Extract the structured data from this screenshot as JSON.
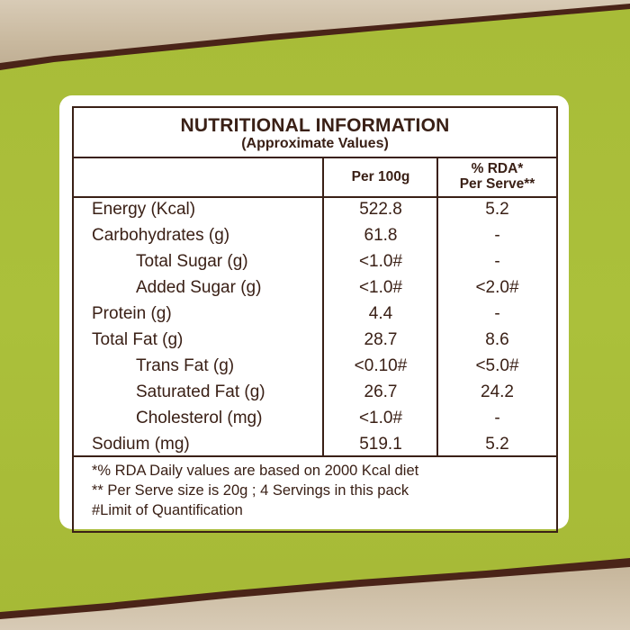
{
  "colors": {
    "background": "#a9bd3a",
    "text": "#3a2016",
    "panel": "#ffffff",
    "edge": "#4a2418"
  },
  "table": {
    "title": "NUTRITIONAL INFORMATION",
    "subtitle": "(Approximate Values)",
    "headers": {
      "per100": "Per 100g",
      "rda_line1": "% RDA*",
      "rda_line2": "Per Serve**"
    },
    "rows": [
      {
        "label": "Energy (Kcal)",
        "per100": "522.8",
        "rda": "5.2"
      },
      {
        "label": "Carbohydrates (g)",
        "per100": "61.8",
        "rda": "-"
      },
      {
        "label": "Total Sugar (g)",
        "per100": "<1.0#",
        "rda": "-"
      },
      {
        "label": "Added Sugar (g)",
        "per100": "<1.0#",
        "rda": "<2.0#"
      },
      {
        "label": "Protein (g)",
        "per100": "4.4",
        "rda": "-"
      },
      {
        "label": "Total Fat (g)",
        "per100": "28.7",
        "rda": "8.6"
      },
      {
        "label": "Trans Fat (g)",
        "per100": "<0.10#",
        "rda": "<5.0#"
      },
      {
        "label": "Saturated Fat (g)",
        "per100": "26.7",
        "rda": "24.2"
      },
      {
        "label": "Cholesterol (mg)",
        "per100": "<1.0#",
        "rda": "-"
      },
      {
        "label": "Sodium (mg)",
        "per100": "519.1",
        "rda": "5.2"
      }
    ],
    "notes": [
      "*% RDA Daily values are based on 2000 Kcal diet",
      "** Per Serve size is 20g ; 4 Servings in this pack",
      "#Limit of Quantification"
    ]
  }
}
